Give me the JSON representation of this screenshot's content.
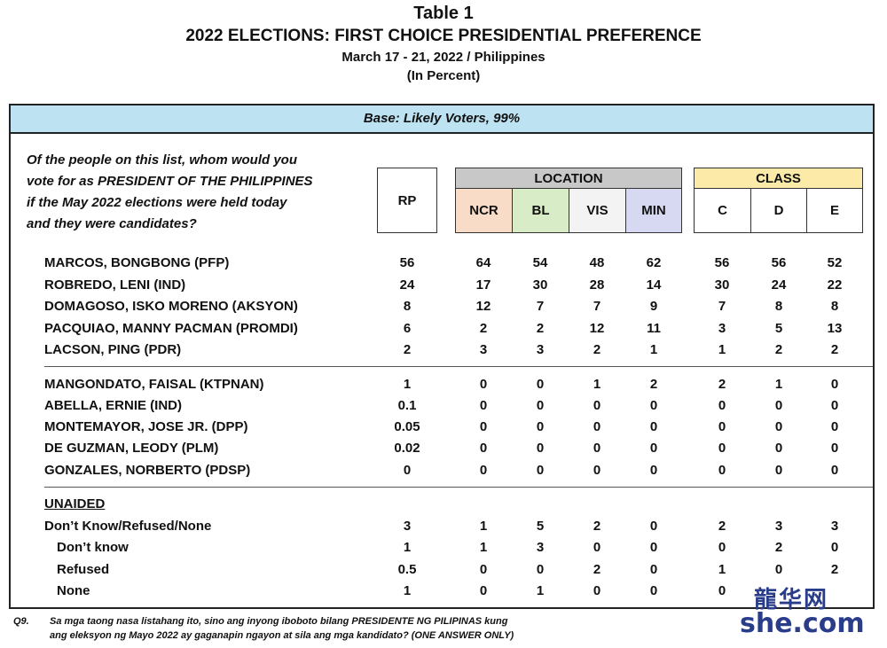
{
  "header": {
    "table_label": "Table 1",
    "title": "2022 ELECTIONS: FIRST CHOICE PRESIDENTIAL PREFERENCE",
    "dates": "March 17 - 21, 2022 / Philippines",
    "unit": "(In Percent)"
  },
  "base_label": "Base: Likely Voters, 99%",
  "question_lines": [
    "Of the people on this list, whom would you",
    "vote for as PRESIDENT OF THE PHILIPPINES",
    "if the May 2022 elections were held today",
    "and they were candidates?"
  ],
  "columns": {
    "rp": "RP",
    "location_label": "LOCATION",
    "location": [
      "NCR",
      "BL",
      "VIS",
      "MIN"
    ],
    "class_label": "CLASS",
    "class": [
      "C",
      "D",
      "E"
    ]
  },
  "colors": {
    "base_band": "#bde3f3",
    "location_header": "#c8c8c8",
    "class_header": "#fbeaa8",
    "ncr": "#f9dcc8",
    "bl": "#d9ecc8",
    "vis": "#f3f3f3",
    "min": "#d7d8f2"
  },
  "rows_group1": [
    {
      "label": "MARCOS, BONGBONG (PFP)",
      "values": [
        "56",
        "64",
        "54",
        "48",
        "62",
        "56",
        "56",
        "52"
      ]
    },
    {
      "label": "ROBREDO, LENI (IND)",
      "values": [
        "24",
        "17",
        "30",
        "28",
        "14",
        "30",
        "24",
        "22"
      ]
    },
    {
      "label": "DOMAGOSO, ISKO MORENO (AKSYON)",
      "values": [
        "8",
        "12",
        "7",
        "7",
        "9",
        "7",
        "8",
        "8"
      ]
    },
    {
      "label": "PACQUIAO, MANNY PACMAN (PROMDI)",
      "values": [
        "6",
        "2",
        "2",
        "12",
        "11",
        "3",
        "5",
        "13"
      ]
    },
    {
      "label": "LACSON, PING (PDR)",
      "values": [
        "2",
        "3",
        "3",
        "2",
        "1",
        "1",
        "2",
        "2"
      ]
    }
  ],
  "rows_group2": [
    {
      "label": "MANGONDATO, FAISAL (KTPNAN)",
      "values": [
        "1",
        "0",
        "0",
        "1",
        "2",
        "2",
        "1",
        "0"
      ]
    },
    {
      "label": "ABELLA, ERNIE (IND)",
      "values": [
        "0.1",
        "0",
        "0",
        "0",
        "0",
        "0",
        "0",
        "0"
      ]
    },
    {
      "label": "MONTEMAYOR, JOSE JR. (DPP)",
      "values": [
        "0.05",
        "0",
        "0",
        "0",
        "0",
        "0",
        "0",
        "0"
      ]
    },
    {
      "label": "DE GUZMAN, LEODY (PLM)",
      "values": [
        "0.02",
        "0",
        "0",
        "0",
        "0",
        "0",
        "0",
        "0"
      ]
    },
    {
      "label": "GONZALES, NORBERTO (PDSP)",
      "values": [
        "0",
        "0",
        "0",
        "0",
        "0",
        "0",
        "0",
        "0"
      ]
    }
  ],
  "unaided_label": "UNAIDED",
  "rows_group3": [
    {
      "label": "Don’t Know/Refused/None",
      "indent": false,
      "values": [
        "3",
        "1",
        "5",
        "2",
        "0",
        "2",
        "3",
        "3"
      ]
    },
    {
      "label": "Don’t know",
      "indent": true,
      "values": [
        "1",
        "1",
        "3",
        "0",
        "0",
        "0",
        "2",
        "0"
      ]
    },
    {
      "label": "Refused",
      "indent": true,
      "values": [
        "0.5",
        "0",
        "0",
        "2",
        "0",
        "1",
        "0",
        "2"
      ]
    },
    {
      "label": "None",
      "indent": true,
      "values": [
        "1",
        "0",
        "1",
        "0",
        "0",
        "0",
        "",
        ""
      ]
    }
  ],
  "footnote": {
    "code": "Q9.",
    "line1": "Sa mga taong nasa listahang ito, sino ang inyong iboboto bilang  PRESIDENTE NG PILIPINAS kung",
    "line2": "ang eleksyon ng Mayo 2022 ay gaganapin ngayon at sila ang mga kandidato? (ONE ANSWER ONLY)"
  },
  "watermark": {
    "top": "龍华网",
    "bottom": "she.com"
  }
}
